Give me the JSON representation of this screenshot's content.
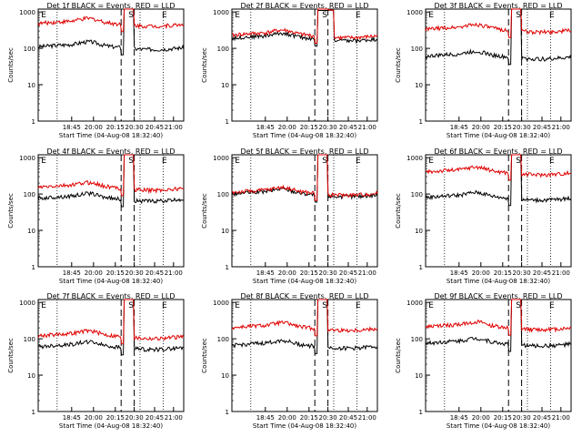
{
  "common": {
    "ylabel": "Counts/sec",
    "xlabel": "Start Time (04-Aug-08 18:32:40)",
    "x_tick_labels": [
      "18:45",
      "20:00",
      "20:15",
      "20:30",
      "20:45",
      "21:00"
    ],
    "y_tick_labels": [
      "1",
      "10",
      "100",
      "1000"
    ],
    "scale": "log",
    "ylim": [
      1,
      1200
    ],
    "event_markers": [
      "E",
      "S",
      "E"
    ],
    "colors": {
      "events": "#000000",
      "lld": "#e00000"
    }
  },
  "chart_data": [
    {
      "type": "line",
      "title": "Det 1f BLACK = Events, RED = LLD",
      "series": [
        {
          "color": "#000000",
          "values": {
            "base": 110,
            "dip": 80,
            "saturated": false
          }
        },
        {
          "color": "#e00000",
          "values": {
            "base": 480,
            "dip": 420,
            "saturated": true
          }
        }
      ]
    },
    {
      "type": "line",
      "title": "Det 2f BLACK = Events, RED = LLD",
      "series": [
        {
          "color": "#000000",
          "values": {
            "base": 190,
            "peak": 1100
          }
        },
        {
          "color": "#e00000",
          "values": {
            "base": 230,
            "peak": 1150
          }
        }
      ]
    },
    {
      "type": "line",
      "title": "Det 3f BLACK = Events, RED = LLD",
      "series": [
        {
          "color": "#000000",
          "values": {
            "base": 60
          }
        },
        {
          "color": "#e00000",
          "values": {
            "base": 330
          }
        }
      ]
    },
    {
      "type": "line",
      "title": "Det 4f BLACK = Events, RED = LLD",
      "series": [
        {
          "color": "#000000",
          "values": {
            "base": 75
          }
        },
        {
          "color": "#e00000",
          "values": {
            "base": 150
          }
        }
      ]
    },
    {
      "type": "line",
      "title": "Det 5f BLACK = Events, RED = LLD",
      "series": [
        {
          "color": "#000000",
          "values": {
            "base": 100
          }
        },
        {
          "color": "#e00000",
          "values": {
            "base": 110
          }
        }
      ]
    },
    {
      "type": "line",
      "title": "Det 6f BLACK = Events, RED = LLD",
      "series": [
        {
          "color": "#000000",
          "values": {
            "base": 80
          }
        },
        {
          "color": "#e00000",
          "values": {
            "base": 400
          }
        }
      ]
    },
    {
      "type": "line",
      "title": "Det 7f BLACK = Events, RED = LLD",
      "series": [
        {
          "color": "#000000",
          "values": {
            "base": 60
          }
        },
        {
          "color": "#e00000",
          "values": {
            "base": 120
          }
        }
      ]
    },
    {
      "type": "line",
      "title": "Det 8f BLACK = Events, RED = LLD",
      "series": [
        {
          "color": "#000000",
          "values": {
            "base": 65
          }
        },
        {
          "color": "#e00000",
          "values": {
            "base": 200
          }
        }
      ]
    },
    {
      "type": "line",
      "title": "Det 9f BLACK = Events, RED = LLD",
      "series": [
        {
          "color": "#000000",
          "values": {
            "base": 75
          }
        },
        {
          "color": "#e00000",
          "values": {
            "base": 210
          }
        }
      ]
    }
  ]
}
